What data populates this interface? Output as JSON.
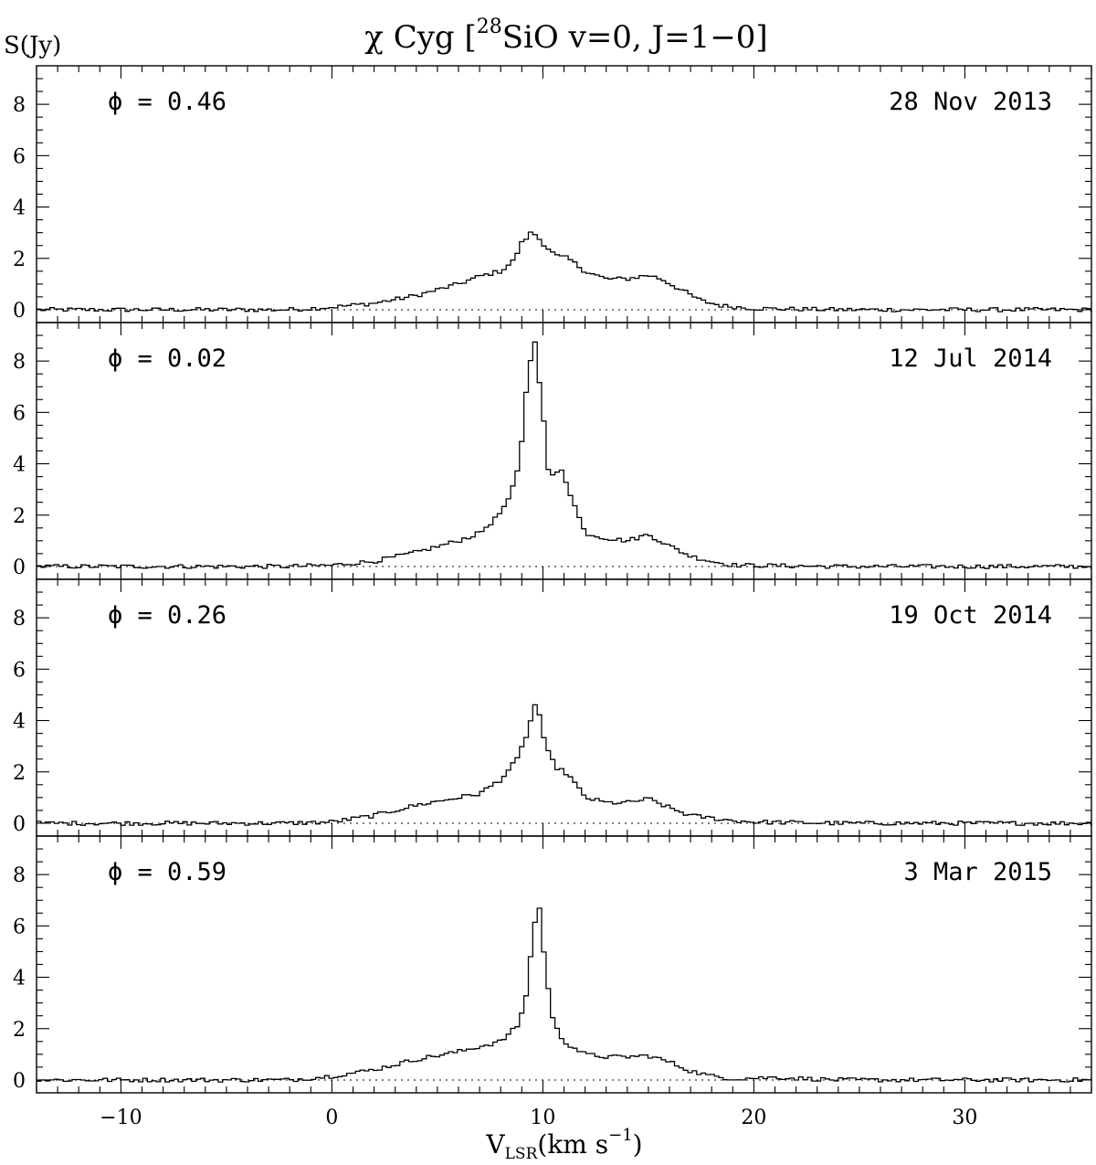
{
  "title": {
    "prefix": "χ Cyg [",
    "iso_mass": "28",
    "molecule": "SiO  v=0,  J=1−0]"
  },
  "ylabel": "S(Jy)",
  "xlabel": {
    "main": "V",
    "sub": "LSR",
    "unit_pre": "(km s",
    "unit_exp": "−1",
    "unit_post": ")"
  },
  "colors": {
    "line": "#000000",
    "background": "#ffffff"
  },
  "chart_data": {
    "type": "line",
    "step": true,
    "xlabel": "V_LSR (km s^-1)",
    "ylabel": "S(Jy)",
    "xlim": [
      -14,
      36
    ],
    "ylim": [
      -0.5,
      9.5
    ],
    "x_ticks": [
      -10,
      0,
      10,
      20,
      30
    ],
    "x_tick_labels": [
      "−10",
      "0",
      "10",
      "20",
      "30"
    ],
    "y_ticks": [
      0,
      2,
      4,
      6,
      8
    ],
    "y_tick_labels": [
      "0",
      "2",
      "4",
      "6",
      "8"
    ],
    "zero_line": "dotted",
    "panels": [
      {
        "phase_label": "ϕ  =  0.46",
        "date": "28 Nov 2013",
        "points": [
          [
            -14,
            0.0
          ],
          [
            -10,
            0.0
          ],
          [
            -6,
            0.0
          ],
          [
            -2,
            0.0
          ],
          [
            0,
            0.1
          ],
          [
            2,
            0.25
          ],
          [
            4,
            0.55
          ],
          [
            6,
            1.0
          ],
          [
            7,
            1.3
          ],
          [
            8,
            1.5
          ],
          [
            8.6,
            1.9
          ],
          [
            9.0,
            2.6
          ],
          [
            9.5,
            3.05
          ],
          [
            10.0,
            2.6
          ],
          [
            10.6,
            2.1
          ],
          [
            11.2,
            2.0
          ],
          [
            12,
            1.5
          ],
          [
            13,
            1.2
          ],
          [
            14,
            1.2
          ],
          [
            15,
            1.35
          ],
          [
            15.6,
            1.2
          ],
          [
            16.5,
            0.8
          ],
          [
            17.5,
            0.35
          ],
          [
            18.5,
            0.15
          ],
          [
            20,
            0.05
          ],
          [
            24,
            0.0
          ],
          [
            30,
            0.0
          ],
          [
            36,
            0.0
          ]
        ]
      },
      {
        "phase_label": "ϕ  =  0.02",
        "date": "12 Jul 2014",
        "points": [
          [
            -14,
            0.0
          ],
          [
            -10,
            0.0
          ],
          [
            -6,
            0.0
          ],
          [
            -2,
            0.0
          ],
          [
            0,
            0.05
          ],
          [
            2,
            0.2
          ],
          [
            4,
            0.55
          ],
          [
            6,
            1.0
          ],
          [
            7,
            1.3
          ],
          [
            7.8,
            1.9
          ],
          [
            8.4,
            2.6
          ],
          [
            8.9,
            4.0
          ],
          [
            9.2,
            6.8
          ],
          [
            9.6,
            9.0
          ],
          [
            10.0,
            6.0
          ],
          [
            10.3,
            3.4
          ],
          [
            10.9,
            3.8
          ],
          [
            11.4,
            2.6
          ],
          [
            12.0,
            1.3
          ],
          [
            13,
            1.1
          ],
          [
            14,
            1.0
          ],
          [
            15,
            1.25
          ],
          [
            16,
            0.8
          ],
          [
            17,
            0.4
          ],
          [
            18,
            0.2
          ],
          [
            19,
            0.05
          ],
          [
            24,
            0.0
          ],
          [
            30,
            0.0
          ],
          [
            36,
            0.0
          ]
        ]
      },
      {
        "phase_label": "ϕ  =  0.26",
        "date": "19 Oct 2014",
        "points": [
          [
            -14,
            0.0
          ],
          [
            -10,
            0.0
          ],
          [
            -6,
            0.0
          ],
          [
            -2,
            0.0
          ],
          [
            0,
            0.05
          ],
          [
            2,
            0.3
          ],
          [
            4,
            0.7
          ],
          [
            6,
            1.0
          ],
          [
            7,
            1.15
          ],
          [
            8,
            1.7
          ],
          [
            8.8,
            2.5
          ],
          [
            9.3,
            3.6
          ],
          [
            9.7,
            4.85
          ],
          [
            10.1,
            3.0
          ],
          [
            10.6,
            2.2
          ],
          [
            11.2,
            1.9
          ],
          [
            12,
            1.0
          ],
          [
            13,
            0.8
          ],
          [
            14,
            0.8
          ],
          [
            15,
            0.95
          ],
          [
            16,
            0.6
          ],
          [
            17,
            0.3
          ],
          [
            18,
            0.2
          ],
          [
            19,
            0.1
          ],
          [
            20,
            0.05
          ],
          [
            24,
            0.0
          ],
          [
            30,
            0.0
          ],
          [
            36,
            0.0
          ]
        ]
      },
      {
        "phase_label": "ϕ  =  0.59",
        "date": "3 Mar 2015",
        "points": [
          [
            -14,
            0.0
          ],
          [
            -10,
            0.0
          ],
          [
            -6,
            0.0
          ],
          [
            -2,
            0.0
          ],
          [
            0,
            0.15
          ],
          [
            2,
            0.4
          ],
          [
            4,
            0.8
          ],
          [
            6,
            1.1
          ],
          [
            7,
            1.3
          ],
          [
            8,
            1.5
          ],
          [
            8.8,
            2.1
          ],
          [
            9.2,
            3.2
          ],
          [
            9.5,
            5.5
          ],
          [
            9.8,
            7.0
          ],
          [
            10.1,
            4.5
          ],
          [
            10.5,
            2.2
          ],
          [
            11,
            1.5
          ],
          [
            12,
            1.0
          ],
          [
            13,
            0.9
          ],
          [
            14,
            0.9
          ],
          [
            15,
            0.95
          ],
          [
            16,
            0.7
          ],
          [
            17,
            0.35
          ],
          [
            18,
            0.15
          ],
          [
            19,
            0.05
          ],
          [
            21,
            0.1
          ],
          [
            24,
            0.0
          ],
          [
            30,
            0.0
          ],
          [
            36,
            0.0
          ]
        ]
      }
    ]
  }
}
